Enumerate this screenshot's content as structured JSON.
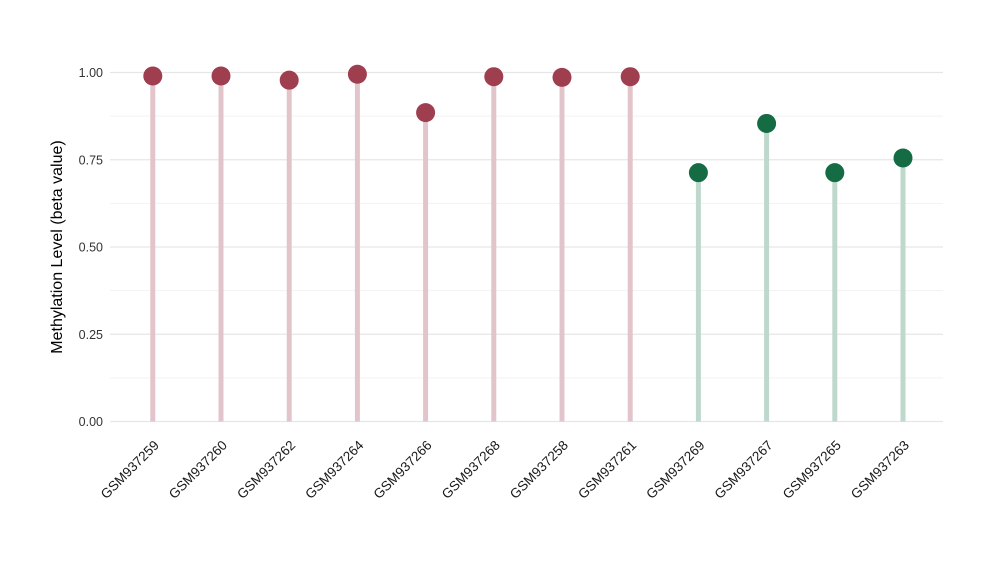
{
  "figure": {
    "background": "#ffffff",
    "ylabel": "Methylation Level (beta value)"
  },
  "chart_data": {
    "type": "scatter",
    "style": "lollipop",
    "title": "",
    "xlabel": "",
    "ylabel": "Methylation Level (beta value)",
    "categories": [
      "GSM937259",
      "GSM937260",
      "GSM937262",
      "GSM937264",
      "GSM937266",
      "GSM937268",
      "GSM937258",
      "GSM937261",
      "GSM937269",
      "GSM937267",
      "GSM937265",
      "GSM937263"
    ],
    "values": [
      0.99,
      0.99,
      0.978,
      0.995,
      0.885,
      0.988,
      0.986,
      0.988,
      0.713,
      0.854,
      0.713,
      0.755
    ],
    "groups": [
      "maroon",
      "maroon",
      "maroon",
      "maroon",
      "maroon",
      "maroon",
      "maroon",
      "maroon",
      "green",
      "green",
      "green",
      "green"
    ],
    "palette": {
      "maroon": {
        "dot": "#9e3e4e",
        "stem": "#e2c5cb"
      },
      "green": {
        "dot": "#146b44",
        "stem": "#bed8cc"
      }
    },
    "ylim": [
      0,
      1
    ],
    "yticks": [
      0.0,
      0.25,
      0.5,
      0.75,
      1.0
    ],
    "ytick_labels": [
      "0.00",
      "0.25",
      "0.50",
      "0.75",
      "1.00"
    ],
    "minor_gridlines": [
      0.125,
      0.375,
      0.625,
      0.875
    ],
    "grid": true,
    "gridline_major_color": "#e6e6e6",
    "gridline_minor_color": "#f2f2f2",
    "legend": "none",
    "x_label_rotation_deg": 45
  }
}
